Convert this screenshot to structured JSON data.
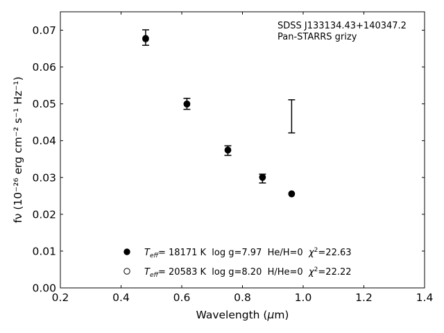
{
  "chart_data": {
    "type": "scatter",
    "xlabel_main": "Wavelength (",
    "xlabel_mu": "μ",
    "xlabel_tail": "m)",
    "ylabel": "fν (10⁻²⁶ erg cm⁻² s⁻¹ Hz⁻¹)",
    "xlim": [
      0.2,
      1.4
    ],
    "ylim": [
      0.0,
      0.075
    ],
    "xticks": [
      0.2,
      0.4,
      0.6,
      0.8,
      1.0,
      1.2,
      1.4
    ],
    "xtick_labels": [
      "0.2",
      "0.4",
      "0.6",
      "0.8",
      "1.0",
      "1.2",
      "1.4"
    ],
    "yticks": [
      0.0,
      0.01,
      0.02,
      0.03,
      0.04,
      0.05,
      0.06,
      0.07
    ],
    "ytick_labels": [
      "0.00",
      "0.01",
      "0.02",
      "0.03",
      "0.04",
      "0.05",
      "0.06",
      "0.07"
    ],
    "grid": false,
    "annotation_lines": [
      "SDSS J133134.43+140347.2",
      "Pan-STARRS grizy"
    ],
    "observed": [
      {
        "x": 0.481,
        "y": 0.068,
        "err": 0.0021
      },
      {
        "x": 0.617,
        "y": 0.05,
        "err": 0.0015
      },
      {
        "x": 0.752,
        "y": 0.0373,
        "err": 0.0013
      },
      {
        "x": 0.866,
        "y": 0.0297,
        "err": 0.0012
      },
      {
        "x": 0.962,
        "y": 0.0466,
        "err": 0.0045
      }
    ],
    "series": [
      {
        "marker": "filled",
        "points": [
          {
            "x": 0.481,
            "y": 0.0678
          },
          {
            "x": 0.617,
            "y": 0.05
          },
          {
            "x": 0.752,
            "y": 0.0375
          },
          {
            "x": 0.866,
            "y": 0.0301
          },
          {
            "x": 0.962,
            "y": 0.0256
          }
        ]
      },
      {
        "marker": "open",
        "points": [
          {
            "x": 0.481,
            "y": 0.0676
          },
          {
            "x": 0.617,
            "y": 0.0499
          },
          {
            "x": 0.752,
            "y": 0.0374
          },
          {
            "x": 0.866,
            "y": 0.03
          },
          {
            "x": 0.962,
            "y": 0.0255
          }
        ]
      }
    ],
    "legend": [
      {
        "marker": "filled",
        "T": "T",
        "Tsub": "eff",
        "text1": "= 18171 K  log g=7.97  He/H=0  ",
        "chi": "χ",
        "chisup": "2",
        "text2": "=22.63"
      },
      {
        "marker": "open",
        "T": "T",
        "Tsub": "eff",
        "text1": "= 20583 K  log g=8.20  H/He=0  ",
        "chi": "χ",
        "chisup": "2",
        "text2": "=22.22"
      }
    ],
    "legend_placement": "lower-left"
  }
}
